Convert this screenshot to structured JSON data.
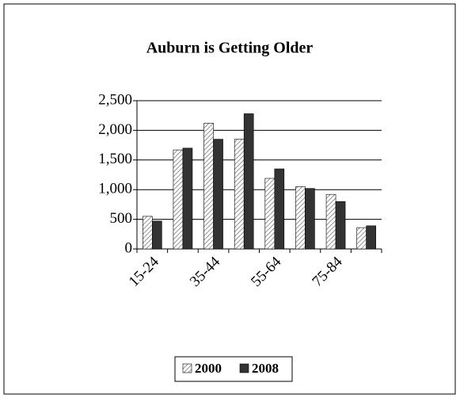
{
  "chart_data": {
    "type": "bar",
    "title": "Auburn is Getting Older",
    "categories": [
      "15-24",
      null,
      "35-44",
      null,
      "55-64",
      null,
      "75-84",
      null
    ],
    "series": [
      {
        "name": "2000",
        "color": "#777777",
        "values": [
          550,
          1670,
          2120,
          1850,
          1190,
          1050,
          920,
          360
        ]
      },
      {
        "name": "2008",
        "color": "#333333",
        "values": [
          470,
          1700,
          1850,
          2280,
          1350,
          1020,
          800,
          390
        ]
      }
    ],
    "ylim": [
      0,
      2500
    ],
    "yticks": [
      0,
      500,
      {
        "value": 1000,
        "label": "1,000"
      },
      {
        "value": 1500,
        "label": "1,500"
      },
      {
        "value": 2000,
        "label": "2,000"
      },
      {
        "value": 2500,
        "label": "2,500"
      }
    ],
    "grid": true,
    "legend": "bottom"
  }
}
